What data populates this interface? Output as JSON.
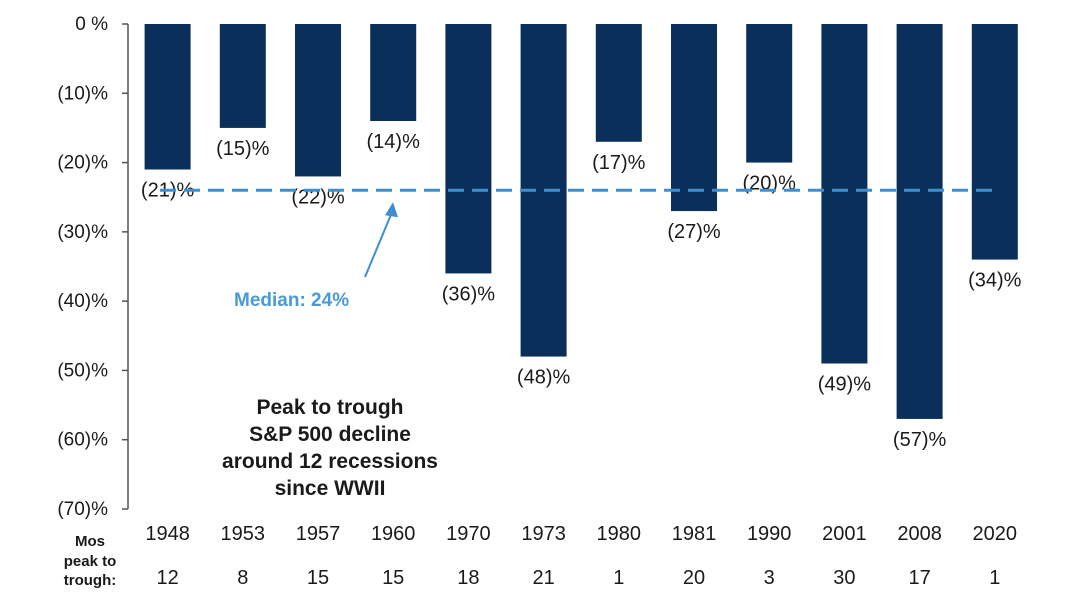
{
  "chart_data": {
    "type": "bar",
    "categories": [
      "1948",
      "1953",
      "1957",
      "1960",
      "1970",
      "1973",
      "1980",
      "1981",
      "1990",
      "2001",
      "2008",
      "2020"
    ],
    "values": [
      -21,
      -15,
      -22,
      -14,
      -36,
      -48,
      -17,
      -27,
      -20,
      -49,
      -57,
      -34
    ],
    "data_labels": [
      "(21)%",
      "(15)%",
      "(22)%",
      "(14)%",
      "(36)%",
      "(48)%",
      "(17)%",
      "(27)%",
      "(20)%",
      "(49)%",
      "(57)%",
      "(34)%"
    ],
    "y_ticks": [
      0,
      -10,
      -20,
      -30,
      -40,
      -50,
      -60,
      -70
    ],
    "y_tick_labels": [
      "0 %",
      "(10)%",
      "(20)%",
      "(30)%",
      "(40)%",
      "(50)%",
      "(60)%",
      "(70)%"
    ],
    "ylim": [
      -70,
      0
    ],
    "grid": false,
    "months_label": [
      "Mos",
      "peak to",
      "trough:"
    ],
    "months_peak_to_trough": [
      "12",
      "8",
      "15",
      "15",
      "18",
      "21",
      "1",
      "20",
      "3",
      "30",
      "17",
      "1"
    ],
    "median": {
      "value": -24,
      "label": "Median: 24%"
    },
    "annotation": [
      "Peak to trough",
      "S&P 500 decline",
      "around 12 recessions",
      "since WWII"
    ],
    "colors": {
      "bar": "#0b2f5b",
      "median_line": "#3d8fd1",
      "median_text": "#4a9ad8",
      "axis": "#555555"
    }
  }
}
